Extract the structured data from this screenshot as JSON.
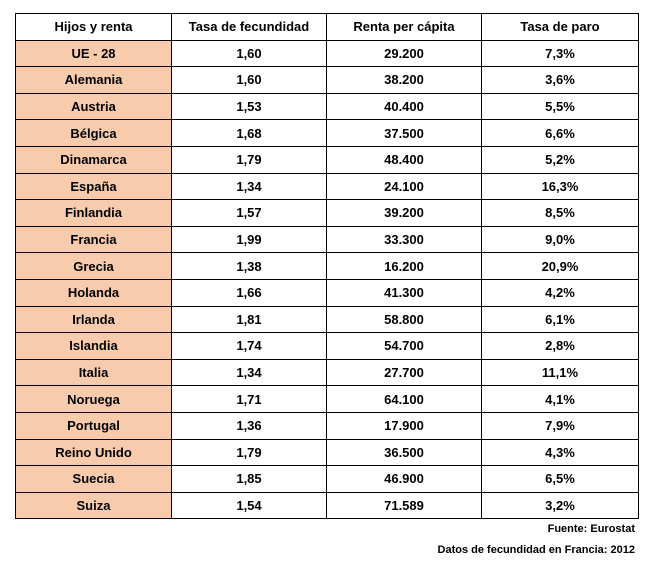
{
  "table": {
    "headers": [
      "Hijos y renta",
      "Tasa de fecundidad",
      "Renta per cápita",
      "Tasa de paro"
    ],
    "rows": [
      [
        "UE - 28",
        "1,60",
        "29.200",
        "7,3%"
      ],
      [
        "Alemania",
        "1,60",
        "38.200",
        "3,6%"
      ],
      [
        "Austria",
        "1,53",
        "40.400",
        "5,5%"
      ],
      [
        "Bélgica",
        "1,68",
        "37.500",
        "6,6%"
      ],
      [
        "Dinamarca",
        "1,79",
        "48.400",
        "5,2%"
      ],
      [
        "España",
        "1,34",
        "24.100",
        "16,3%"
      ],
      [
        "Finlandia",
        "1,57",
        "39.200",
        "8,5%"
      ],
      [
        "Francia",
        "1,99",
        "33.300",
        "9,0%"
      ],
      [
        "Grecia",
        "1,38",
        "16.200",
        "20,9%"
      ],
      [
        "Holanda",
        "1,66",
        "41.300",
        "4,2%"
      ],
      [
        "Irlanda",
        "1,81",
        "58.800",
        "6,1%"
      ],
      [
        "Islandia",
        "1,74",
        "54.700",
        "2,8%"
      ],
      [
        "Italia",
        "1,34",
        "27.700",
        "11,1%"
      ],
      [
        "Noruega",
        "1,71",
        "64.100",
        "4,1%"
      ],
      [
        "Portugal",
        "1,36",
        "17.900",
        "7,9%"
      ],
      [
        "Reino Unido",
        "1,79",
        "36.500",
        "4,3%"
      ],
      [
        "Suecia",
        "1,85",
        "46.900",
        "6,5%"
      ],
      [
        "Suiza",
        "1,54",
        "71.589",
        "3,2%"
      ]
    ]
  },
  "notes": {
    "source": "Fuente: Eurostat",
    "france": "Datos de fecundidad en Francia: 2012"
  },
  "colors": {
    "country_fill": "#f8cbad",
    "border": "#000000"
  }
}
